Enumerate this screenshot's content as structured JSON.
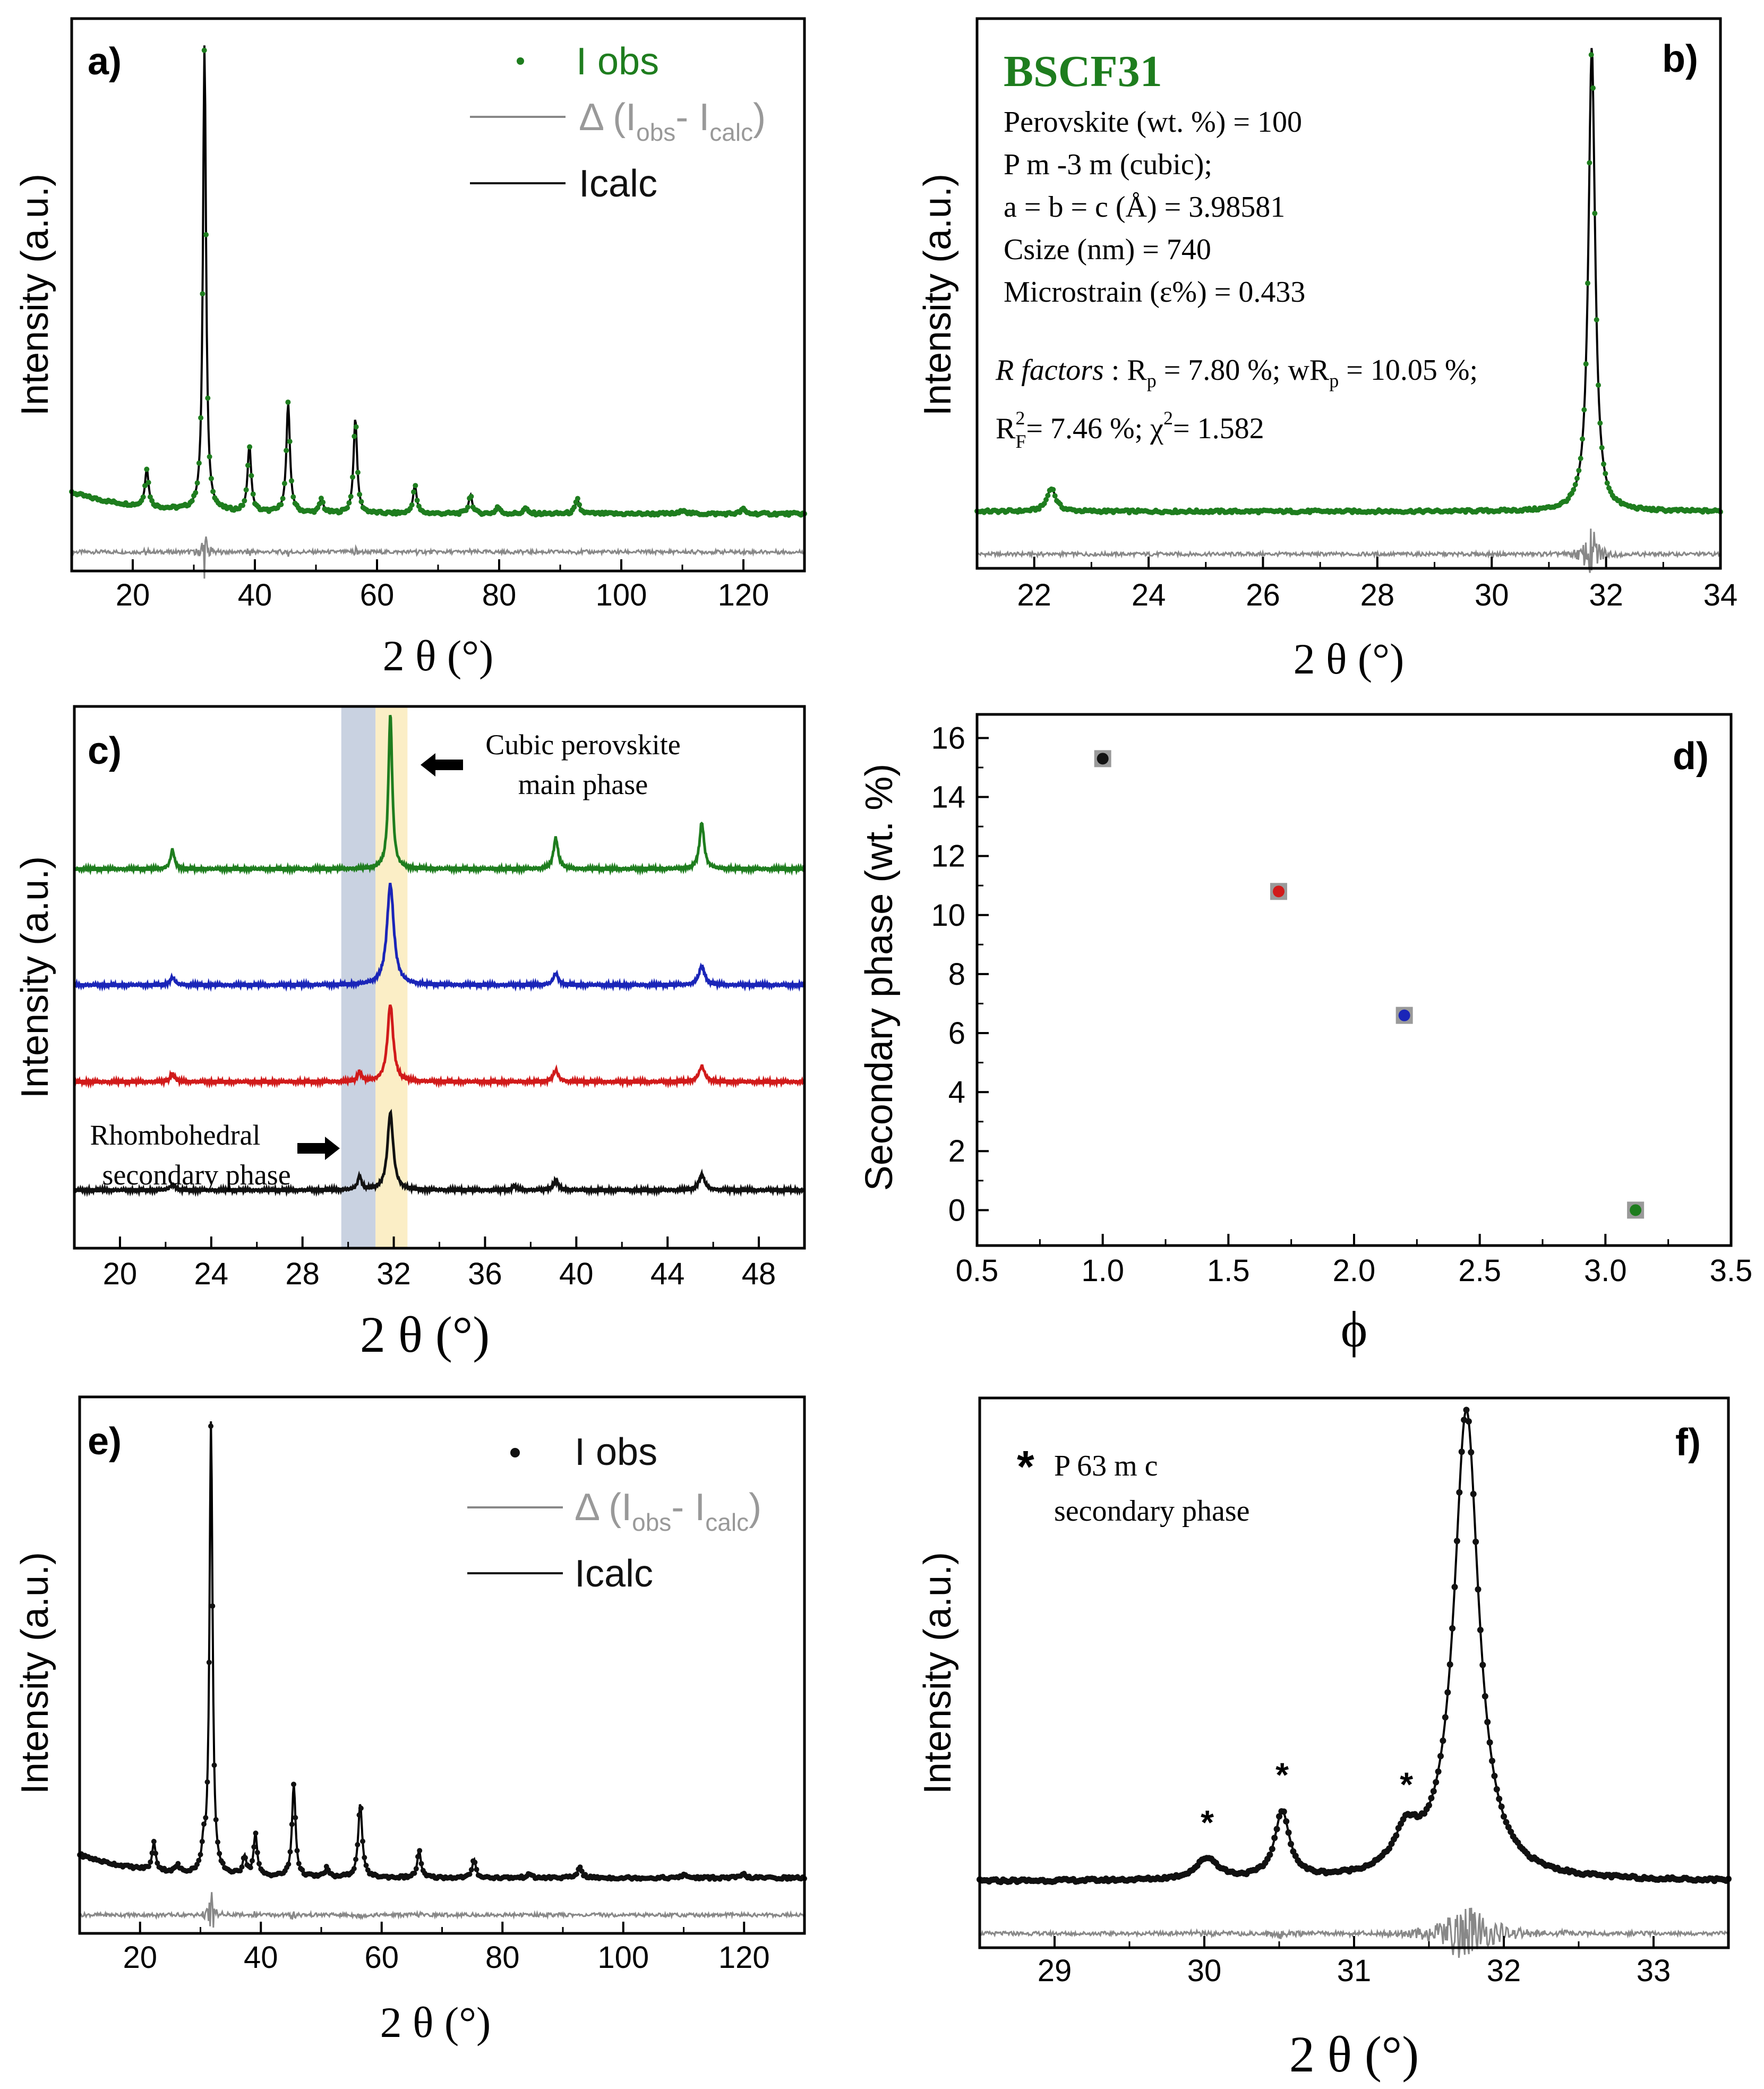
{
  "colors": {
    "green": "#1e7d1e",
    "blue": "#1a25b8",
    "red": "#d11a1a",
    "black": "#111111",
    "gray": "#888888",
    "frame": "#000000",
    "blueband": "#c9d2e1",
    "yellowband": "#fbeec6"
  },
  "chart_data": [
    {
      "id": "a",
      "panel_label": "a)",
      "type": "line",
      "xlabel": "2 θ (°)",
      "ylabel": "Intensity (a.u.)",
      "xlim": [
        10,
        130
      ],
      "xticks": [
        20,
        40,
        60,
        80,
        100,
        120
      ],
      "ylim": [
        -0.12,
        1.04
      ],
      "legend": {
        "obs": "I obs",
        "diff_pre": "Δ (I",
        "diff_sub1": "obs",
        "diff_mid": "- I",
        "diff_sub2": "calc",
        "diff_post": ")",
        "calc": "Icalc"
      },
      "baseline": {
        "start": 0.045,
        "end": 0.0,
        "decay": 0.09
      },
      "peaks": [
        {
          "x": 22.3,
          "h": 0.08,
          "w": 0.35
        },
        {
          "x": 31.75,
          "h": 0.98,
          "w": 0.3
        },
        {
          "x": 39.1,
          "h": 0.14,
          "w": 0.35
        },
        {
          "x": 45.45,
          "h": 0.23,
          "w": 0.35
        },
        {
          "x": 50.9,
          "h": 0.03,
          "w": 0.35
        },
        {
          "x": 56.45,
          "h": 0.2,
          "w": 0.35
        },
        {
          "x": 66.2,
          "h": 0.06,
          "w": 0.35
        },
        {
          "x": 75.3,
          "h": 0.04,
          "w": 0.35
        },
        {
          "x": 79.8,
          "h": 0.015,
          "w": 0.35
        },
        {
          "x": 84.3,
          "h": 0.012,
          "w": 0.35
        },
        {
          "x": 92.8,
          "h": 0.03,
          "w": 0.4
        },
        {
          "x": 110.2,
          "h": 0.01,
          "w": 0.4
        },
        {
          "x": 119.9,
          "h": 0.01,
          "w": 0.4
        }
      ],
      "diff_offset": -0.08,
      "obs_color": "green"
    },
    {
      "id": "b",
      "panel_label": "b)",
      "type": "line",
      "xlabel": "2 θ (°)",
      "ylabel": "Intensity (a.u.)",
      "xlim": [
        21,
        34
      ],
      "xticks": [
        22,
        24,
        26,
        28,
        30,
        32,
        34
      ],
      "ylim": [
        -0.12,
        1.04
      ],
      "baseline": {
        "start": 0.0,
        "end": 0.0,
        "decay": 1
      },
      "peaks": [
        {
          "x": 22.3,
          "h": 0.05,
          "w": 0.09
        },
        {
          "x": 31.75,
          "h": 0.98,
          "w": 0.07
        }
      ],
      "diff_offset": -0.09,
      "obs_color": "green",
      "annotation": {
        "title": "BSCF31",
        "line1": "Perovskite (wt. %) = 100",
        "line2": "P m -3 m (cubic);",
        "line3": "a = b = c (Å) = 3.98581",
        "line4": "Csize (nm) = 740",
        "line5": "Microstrain (ε%) = 0.433",
        "r_label": "R factors",
        "r_text1": " : R",
        "r_sub_p": "p",
        "r_text2": " = 7.80 %; wR",
        "r_text3": " = 10.05 %;",
        "rf_r": "R",
        "rf_sup": "2",
        "rf_sub": "F",
        "rf_text": "= 7.46 %; χ",
        "chi_sup": "2",
        "chi_text": "= 1.582"
      }
    },
    {
      "id": "c",
      "panel_label": "c)",
      "type": "line",
      "xlabel": "2 θ (°)",
      "ylabel": "Intensity (a.u.)",
      "xlim": [
        18,
        50
      ],
      "xticks": [
        20,
        24,
        28,
        32,
        36,
        40,
        44,
        48
      ],
      "ylim": [
        -0.1,
        1.3
      ],
      "bands": [
        {
          "x0": 29.7,
          "x1": 31.2,
          "color": "blueband"
        },
        {
          "x0": 31.2,
          "x1": 32.6,
          "color": "yellowband"
        }
      ],
      "annotation_main": {
        "line1": "Cubic perovskite",
        "line2": "main phase"
      },
      "annotation_secondary": {
        "line1": "Rhombohedral",
        "line2": "secondary phase"
      },
      "series": [
        {
          "name": "green",
          "offset": 0.88,
          "peaks": [
            {
              "x": 22.3,
              "h": 0.05,
              "w": 0.1
            },
            {
              "x": 31.85,
              "h": 0.4,
              "w": 0.1
            },
            {
              "x": 39.1,
              "h": 0.08,
              "w": 0.12
            },
            {
              "x": 45.5,
              "h": 0.12,
              "w": 0.12
            }
          ]
        },
        {
          "name": "blue",
          "offset": 0.58,
          "peaks": [
            {
              "x": 22.3,
              "h": 0.02,
              "w": 0.12
            },
            {
              "x": 31.85,
              "h": 0.26,
              "w": 0.18
            },
            {
              "x": 39.1,
              "h": 0.03,
              "w": 0.13
            },
            {
              "x": 45.5,
              "h": 0.05,
              "w": 0.15
            }
          ]
        },
        {
          "name": "red",
          "offset": 0.33,
          "peaks": [
            {
              "x": 22.3,
              "h": 0.02,
              "w": 0.12
            },
            {
              "x": 30.5,
              "h": 0.025,
              "w": 0.1
            },
            {
              "x": 31.85,
              "h": 0.2,
              "w": 0.15
            },
            {
              "x": 39.1,
              "h": 0.03,
              "w": 0.13
            },
            {
              "x": 45.5,
              "h": 0.04,
              "w": 0.15
            }
          ]
        },
        {
          "name": "black",
          "offset": 0.05,
          "peaks": [
            {
              "x": 22.3,
              "h": 0.015,
              "w": 0.12
            },
            {
              "x": 30.5,
              "h": 0.035,
              "w": 0.1
            },
            {
              "x": 31.85,
              "h": 0.2,
              "w": 0.15
            },
            {
              "x": 37.3,
              "h": 0.01,
              "w": 0.12
            },
            {
              "x": 39.1,
              "h": 0.025,
              "w": 0.13
            },
            {
              "x": 45.5,
              "h": 0.04,
              "w": 0.15
            }
          ]
        }
      ]
    },
    {
      "id": "d",
      "panel_label": "d)",
      "type": "scatter",
      "xlabel": "ϕ",
      "ylabel": "Secondary phase (wt. %)",
      "xlim": [
        0.5,
        3.5
      ],
      "xticks": [
        0.5,
        1.0,
        1.5,
        2.0,
        2.5,
        3.0,
        3.5
      ],
      "ylim": [
        -1.2,
        16.8
      ],
      "yticks": [
        0,
        2,
        4,
        6,
        8,
        10,
        12,
        14,
        16
      ],
      "points": [
        {
          "x": 1.0,
          "y": 15.3,
          "color": "black"
        },
        {
          "x": 1.7,
          "y": 10.8,
          "color": "red"
        },
        {
          "x": 2.2,
          "y": 6.6,
          "color": "blue"
        },
        {
          "x": 3.12,
          "y": 0.0,
          "color": "green"
        }
      ]
    },
    {
      "id": "e",
      "panel_label": "e)",
      "type": "line",
      "xlabel": "2 θ (°)",
      "ylabel": "Intensity (a.u.)",
      "xlim": [
        10,
        130
      ],
      "xticks": [
        20,
        40,
        60,
        80,
        100,
        120
      ],
      "ylim": [
        -0.12,
        1.04
      ],
      "legend": {
        "obs": "I obs",
        "diff_pre": "Δ (I",
        "diff_sub1": "obs",
        "diff_mid": "- I",
        "diff_sub2": "calc",
        "diff_post": ")",
        "calc": "Icalc"
      },
      "baseline": {
        "start": 0.05,
        "end": 0.0,
        "decay": 0.09
      },
      "peaks": [
        {
          "x": 22.3,
          "h": 0.06,
          "w": 0.35
        },
        {
          "x": 26.2,
          "h": 0.015,
          "w": 0.35
        },
        {
          "x": 30.5,
          "h": 0.05,
          "w": 0.3
        },
        {
          "x": 31.75,
          "h": 0.98,
          "w": 0.3
        },
        {
          "x": 37.3,
          "h": 0.04,
          "w": 0.35
        },
        {
          "x": 39.1,
          "h": 0.09,
          "w": 0.35
        },
        {
          "x": 45.45,
          "h": 0.2,
          "w": 0.35
        },
        {
          "x": 50.9,
          "h": 0.02,
          "w": 0.35
        },
        {
          "x": 56.45,
          "h": 0.16,
          "w": 0.4
        },
        {
          "x": 66.2,
          "h": 0.06,
          "w": 0.35
        },
        {
          "x": 75.3,
          "h": 0.04,
          "w": 0.35
        },
        {
          "x": 84.3,
          "h": 0.01,
          "w": 0.35
        },
        {
          "x": 92.8,
          "h": 0.025,
          "w": 0.4
        },
        {
          "x": 110.2,
          "h": 0.008,
          "w": 0.4
        },
        {
          "x": 119.9,
          "h": 0.008,
          "w": 0.4
        }
      ],
      "diff_offset": -0.08,
      "obs_color": "black"
    },
    {
      "id": "f",
      "panel_label": "f)",
      "type": "line",
      "xlabel": "2 θ (°)",
      "ylabel": "Intensity (a.u.)",
      "xlim": [
        28.5,
        33.5
      ],
      "xticks": [
        29,
        30,
        31,
        32,
        33
      ],
      "ylim": [
        -0.14,
        1.02
      ],
      "baseline": {
        "start": 0.0,
        "end": 0.0,
        "decay": 1
      },
      "peaks": [
        {
          "x": 30.02,
          "h": 0.045,
          "w": 0.09
        },
        {
          "x": 30.52,
          "h": 0.14,
          "w": 0.06
        },
        {
          "x": 31.35,
          "h": 0.08,
          "w": 0.1
        },
        {
          "x": 31.75,
          "h": 0.99,
          "w": 0.1
        }
      ],
      "diff_offset": -0.11,
      "obs_color": "black",
      "stars": [
        {
          "x": 30.02,
          "y": 0.1
        },
        {
          "x": 30.52,
          "y": 0.2
        },
        {
          "x": 31.35,
          "y": 0.18
        }
      ],
      "annotation": {
        "star": "*",
        "line1": "P 63 m c",
        "line2": "secondary phase"
      }
    }
  ]
}
